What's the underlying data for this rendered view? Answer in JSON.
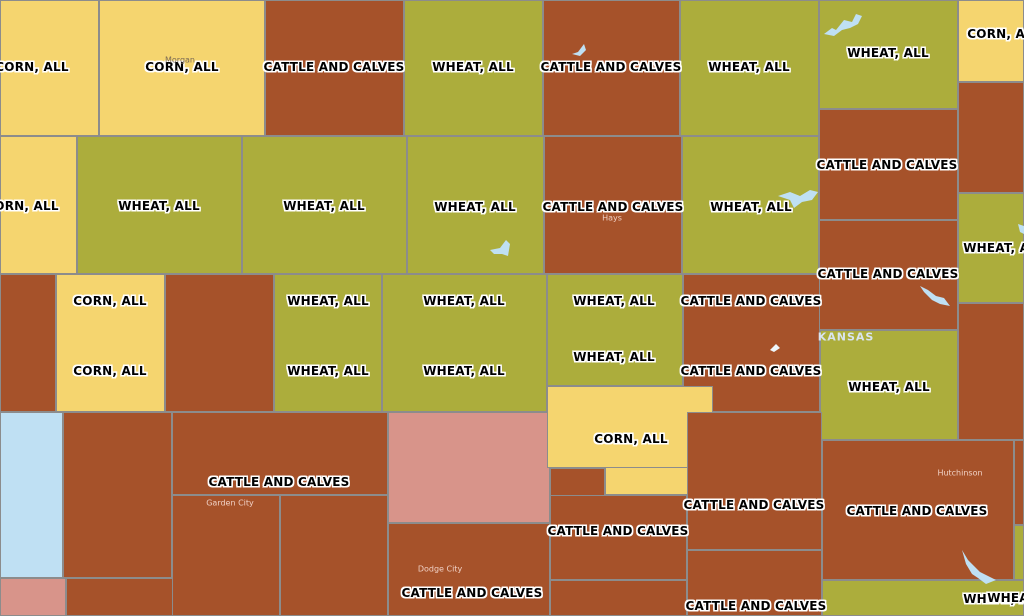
{
  "legend_colors": {
    "cattle_and_calves": "#a6522a",
    "wheat_all": "#acad3c",
    "corn_all": "#f5d56f",
    "other": "#d8948a",
    "out_of_state": "#bfe0f3"
  },
  "labels": {
    "l01": "CORN, ALL",
    "l02": "CORN, ALL",
    "l03": "CATTLE AND CALVES",
    "l04": "WHEAT, ALL",
    "l05": "CATTLE AND CALVES",
    "l06": "WHEAT, ALL",
    "l07": "WHEAT, ALL",
    "l08": "CORN, ALL",
    "l09": "CORN, ALL",
    "l10": "WHEAT, ALL",
    "l11": "WHEAT, ALL",
    "l12": "WHEAT, ALL",
    "l13": "CATTLE AND CALVES",
    "l14": "WHEAT, ALL",
    "l15": "CATTLE AND CALVES",
    "l16": "WHEAT, ALL",
    "l17": "CORN, ALL",
    "l18": "CORN, ALL",
    "l19": "WHEAT, ALL",
    "l20": "WHEAT, ALL",
    "l21": "WHEAT, ALL",
    "l22": "WHEAT, ALL",
    "l23": "WHEAT, ALL",
    "l24": "WHEAT, ALL",
    "l25": "WHEAT, ALL",
    "l26": "CATTLE AND CALVES",
    "l27": "CATTLE AND CALVES",
    "l28": "CATTLE AND CALVES",
    "l29": "WHEAT, ALL",
    "l30": "CORN, ALL",
    "l31": "CATTLE AND CALVES",
    "l32": "CATTLE AND CALVES",
    "l33": "CATTLE AND CALVES",
    "l34": "CATTLE AND CALVES",
    "l35": "CATTLE AND CALVES",
    "l36": "CATTLE AND CALVES",
    "l37": "WHEA"
  },
  "places": {
    "morgan": "Morgan",
    "hays": "Hays",
    "garden_city": "Garden City",
    "dodge_city": "Dodge City",
    "hutchinson": "Hutchinson"
  },
  "state_label": "KANSAS"
}
